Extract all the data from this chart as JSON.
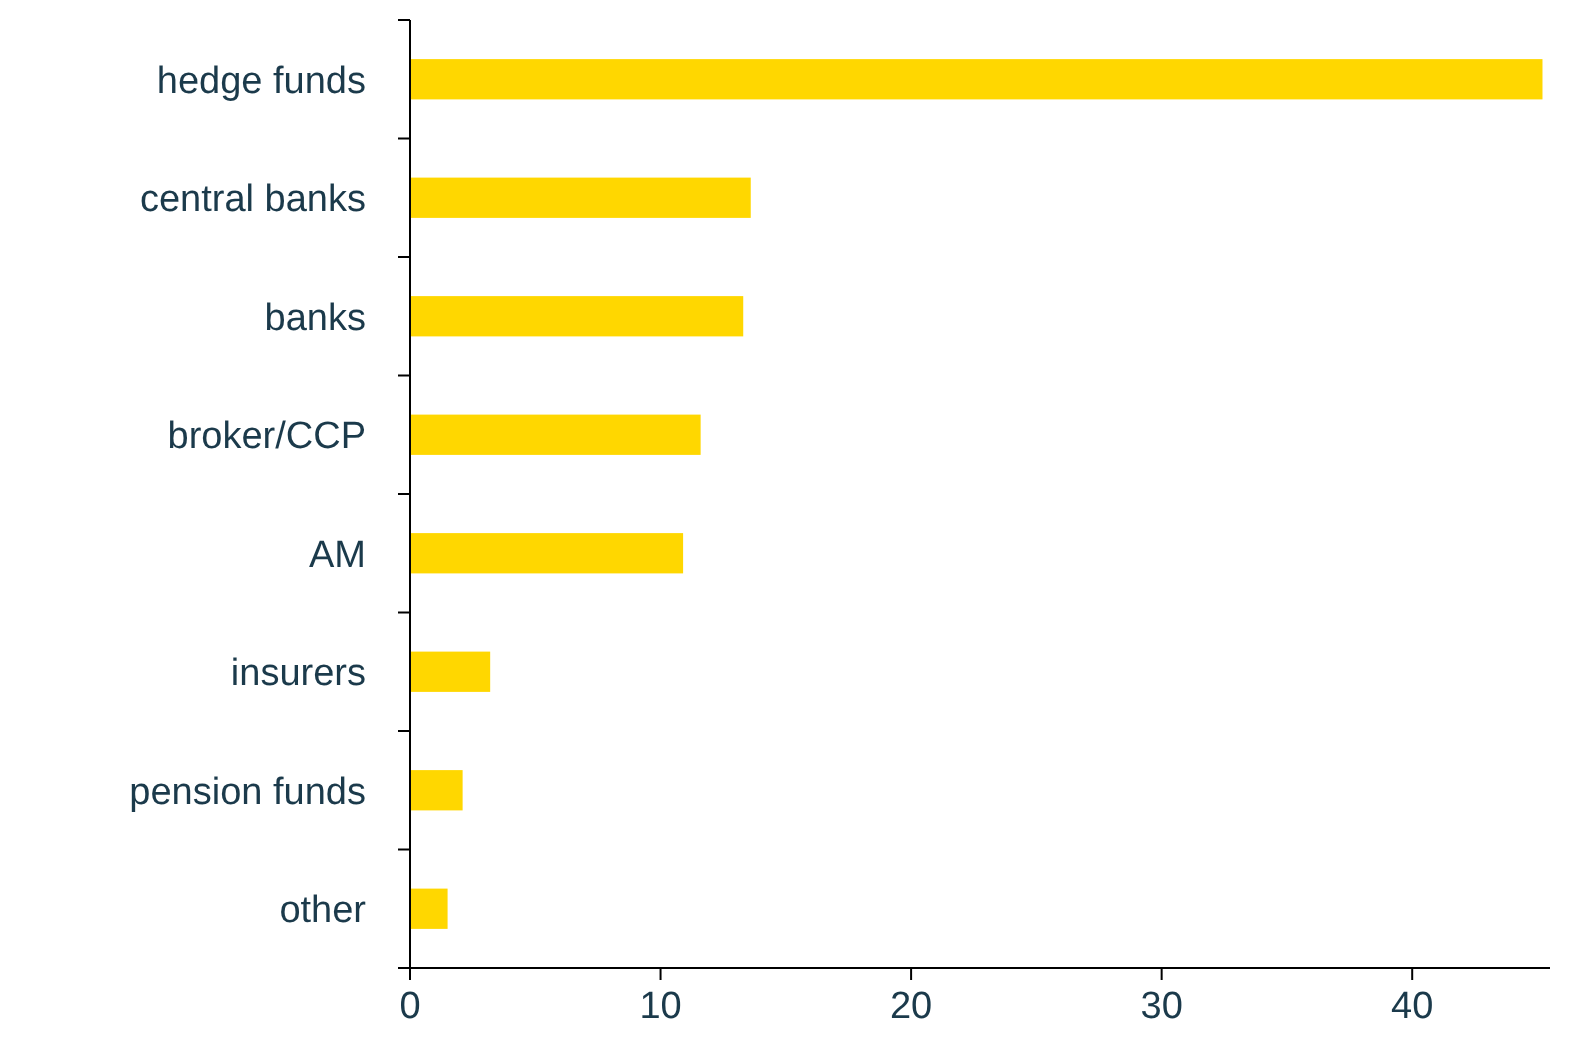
{
  "chart_data": {
    "type": "bar",
    "orientation": "horizontal",
    "categories": [
      "hedge funds",
      "central banks",
      "banks",
      "broker/CCP",
      "AM",
      "insurers",
      "pension funds",
      "other"
    ],
    "values": [
      45.2,
      13.6,
      13.3,
      11.6,
      10.9,
      3.2,
      2.1,
      1.5
    ],
    "color": "#ffd700",
    "xlim": [
      0,
      45.5
    ],
    "xticks": [
      0,
      10,
      20,
      30,
      40
    ]
  }
}
